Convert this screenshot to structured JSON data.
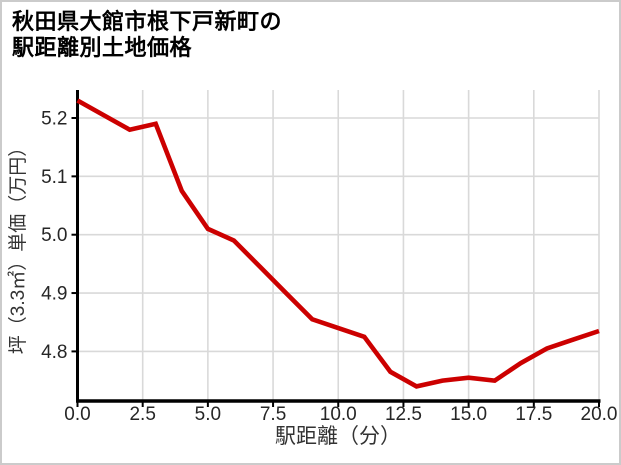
{
  "page": {
    "title_line1": "秋田県大館市根下戸新町の",
    "title_line2": "駅距離別土地価格"
  },
  "chart_data": {
    "type": "line",
    "title": "秋田県大館市根下戸新町の駅距離別土地価格",
    "xlabel": "駅距離（分）",
    "ylabel": "坪（3.3㎡）単価（万円）",
    "x": [
      0,
      1,
      2,
      3,
      4,
      5,
      6,
      7,
      8,
      9,
      10,
      11,
      12,
      13,
      14,
      15,
      16,
      17,
      18,
      19,
      20
    ],
    "values": [
      5.23,
      5.205,
      5.18,
      5.19,
      5.075,
      5.01,
      4.99,
      4.945,
      4.9,
      4.855,
      4.84,
      4.825,
      4.765,
      4.74,
      4.75,
      4.755,
      4.75,
      4.78,
      4.805,
      4.82,
      4.835
    ],
    "xlim": [
      0,
      20
    ],
    "ylim": [
      4.715,
      5.248
    ],
    "x_ticks": {
      "values": [
        0,
        2.5,
        5,
        7.5,
        10,
        12.5,
        15,
        17.5,
        20
      ],
      "labels": [
        "0.0",
        "2.5",
        "5.0",
        "7.5",
        "10.0",
        "12.5",
        "15.0",
        "17.5",
        "20.0"
      ]
    },
    "y_ticks": {
      "values": [
        5.2,
        5.1,
        5.0,
        4.9,
        4.8
      ],
      "labels": [
        "5.2",
        "5.1",
        "5.0",
        "4.9",
        "4.8"
      ]
    },
    "grid": true,
    "legend": false,
    "line_color": "#cc0000",
    "grid_color": "#d9d9d9",
    "axis_color": "#000000",
    "tick_label_color": "#262626",
    "axis_label_color": "#333333"
  }
}
